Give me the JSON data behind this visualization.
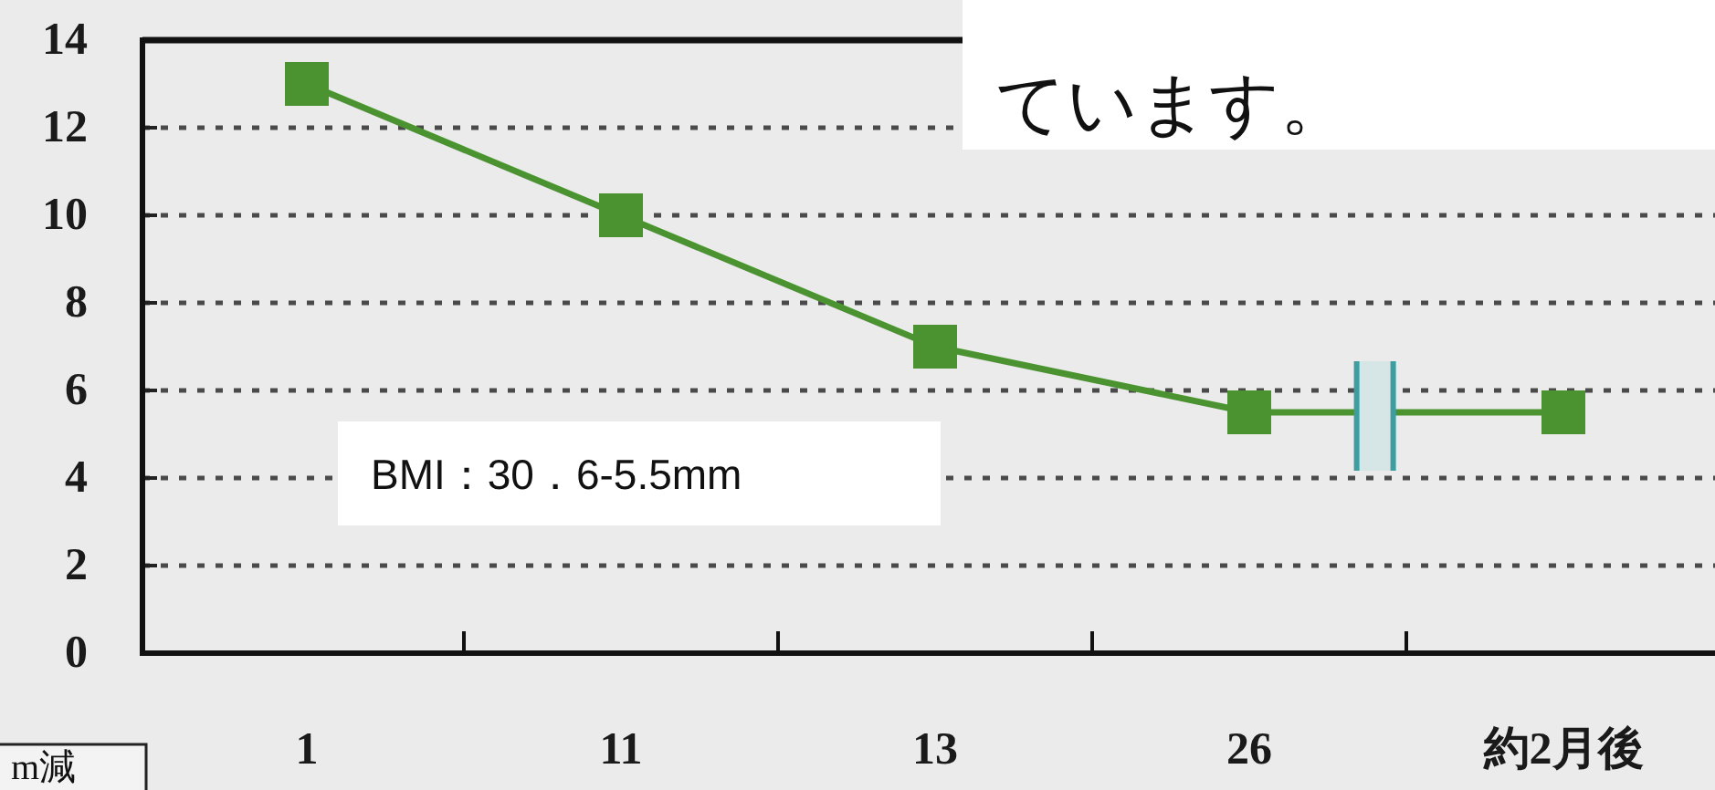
{
  "chart_data": {
    "type": "line",
    "categories": [
      "1",
      "11",
      "13",
      "26",
      "約2月後"
    ],
    "series": [
      {
        "color": "#4a9330",
        "values": [
          13,
          10,
          7,
          5.5,
          5.5
        ]
      }
    ],
    "ylim": [
      0,
      14
    ],
    "yticks": [
      0,
      2,
      4,
      6,
      8,
      10,
      12,
      14
    ],
    "grid": "y",
    "marker": "square",
    "line_style": "solid",
    "annotations": [
      "ています。",
      "BMI：30．6-5.5mm",
      "m減"
    ]
  }
}
